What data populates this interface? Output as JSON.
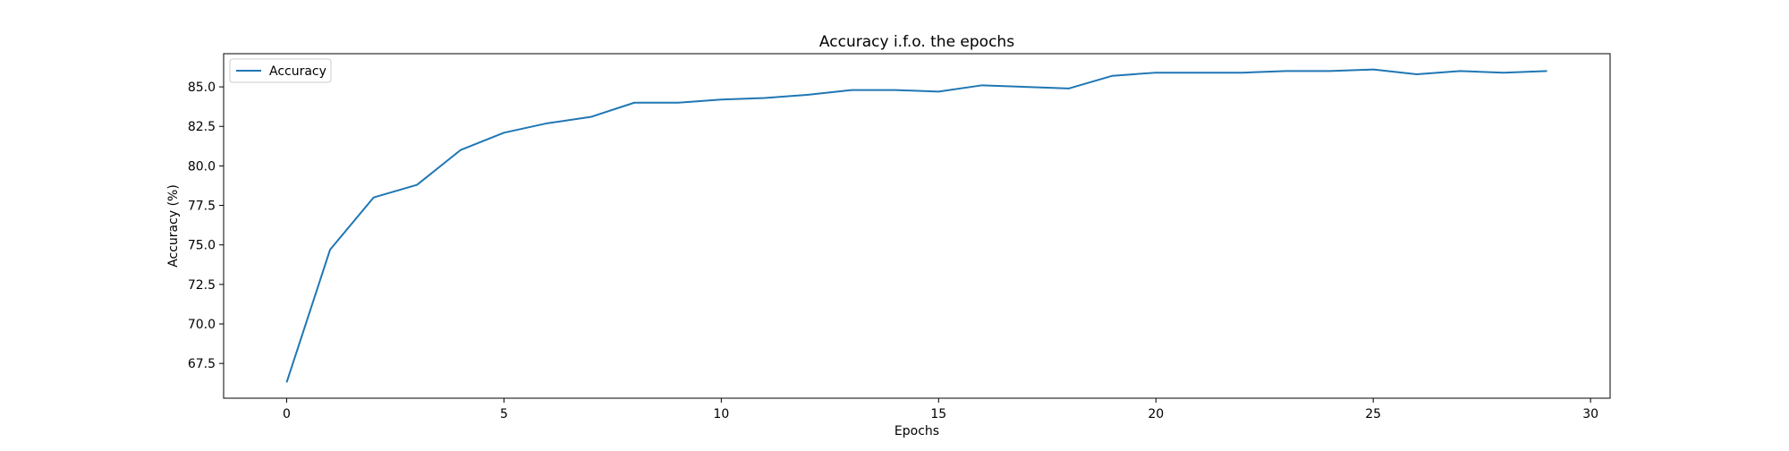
{
  "chart_data": {
    "type": "line",
    "title": "Accuracy i.f.o. the epochs",
    "xlabel": "Epochs",
    "ylabel": "Accuracy (%)",
    "xlim": [
      -1.45,
      30.45
    ],
    "ylim": [
      65.3,
      87.1
    ],
    "xticks": [
      0,
      5,
      10,
      15,
      20,
      25,
      30
    ],
    "yticks": [
      67.5,
      70.0,
      72.5,
      75.0,
      77.5,
      80.0,
      82.5,
      85.0
    ],
    "grid": false,
    "legend_position": "top-left",
    "x": [
      0,
      1,
      2,
      3,
      4,
      5,
      6,
      7,
      8,
      9,
      10,
      11,
      12,
      13,
      14,
      15,
      16,
      17,
      18,
      19,
      20,
      21,
      22,
      23,
      24,
      25,
      26,
      27,
      28,
      29
    ],
    "series": [
      {
        "name": "Accuracy",
        "color": "#1f77b4",
        "values": [
          66.3,
          74.7,
          78.0,
          78.8,
          81.0,
          82.1,
          82.7,
          83.1,
          84.0,
          84.0,
          84.2,
          84.3,
          84.5,
          84.8,
          84.8,
          84.7,
          85.1,
          85.0,
          84.9,
          85.7,
          85.9,
          85.9,
          85.9,
          86.0,
          86.0,
          86.1,
          85.8,
          86.0,
          85.9,
          86.0
        ]
      }
    ]
  }
}
